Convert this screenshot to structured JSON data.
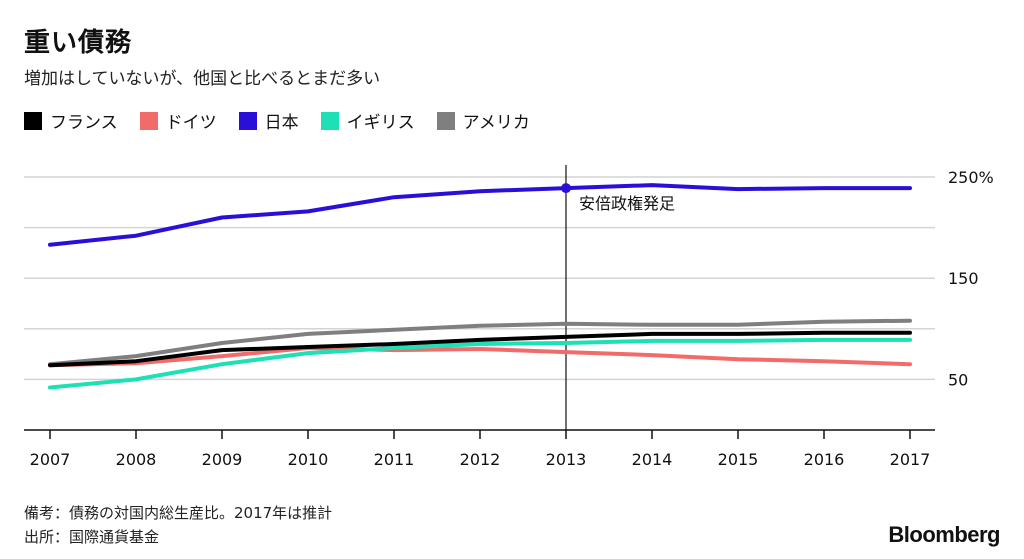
{
  "header": {
    "title": "重い債務",
    "subtitle": "増加はしていないが、他国と比べるとまだ多い"
  },
  "footer": {
    "note": "備考：債務の対国内総生産比。2017年は推計",
    "source": "出所：国際通貨基金",
    "brand": "Bloomberg"
  },
  "chart_data": {
    "type": "line",
    "x": [
      "2007",
      "2008",
      "2009",
      "2010",
      "2011",
      "2012",
      "2013",
      "2014",
      "2015",
      "2016",
      "2017"
    ],
    "series": [
      {
        "name": "フランス",
        "color": "#000000",
        "values": [
          64,
          68,
          79,
          82,
          85,
          89,
          92,
          95,
          95,
          96,
          96
        ]
      },
      {
        "name": "ドイツ",
        "color": "#f26b6b",
        "values": [
          64,
          66,
          73,
          81,
          79,
          80,
          77,
          74,
          70,
          68,
          65
        ]
      },
      {
        "name": "日本",
        "color": "#2a0fd8",
        "values": [
          183,
          192,
          210,
          216,
          230,
          236,
          239,
          242,
          238,
          239,
          239
        ]
      },
      {
        "name": "イギリス",
        "color": "#1de0b4",
        "values": [
          42,
          50,
          65,
          76,
          81,
          85,
          86,
          88,
          88,
          89,
          89
        ]
      },
      {
        "name": "アメリカ",
        "color": "#7f7f7f",
        "values": [
          65,
          73,
          86,
          95,
          99,
          103,
          105,
          104,
          104,
          107,
          108
        ]
      }
    ],
    "ylim": [
      0,
      250
    ],
    "y_ticks": [
      50,
      150,
      250
    ],
    "y_tick_labels": [
      "50",
      "150",
      "250%"
    ],
    "grid": true,
    "annotation": {
      "x": "2013",
      "series": "日本",
      "label": "安倍政権発足"
    }
  }
}
